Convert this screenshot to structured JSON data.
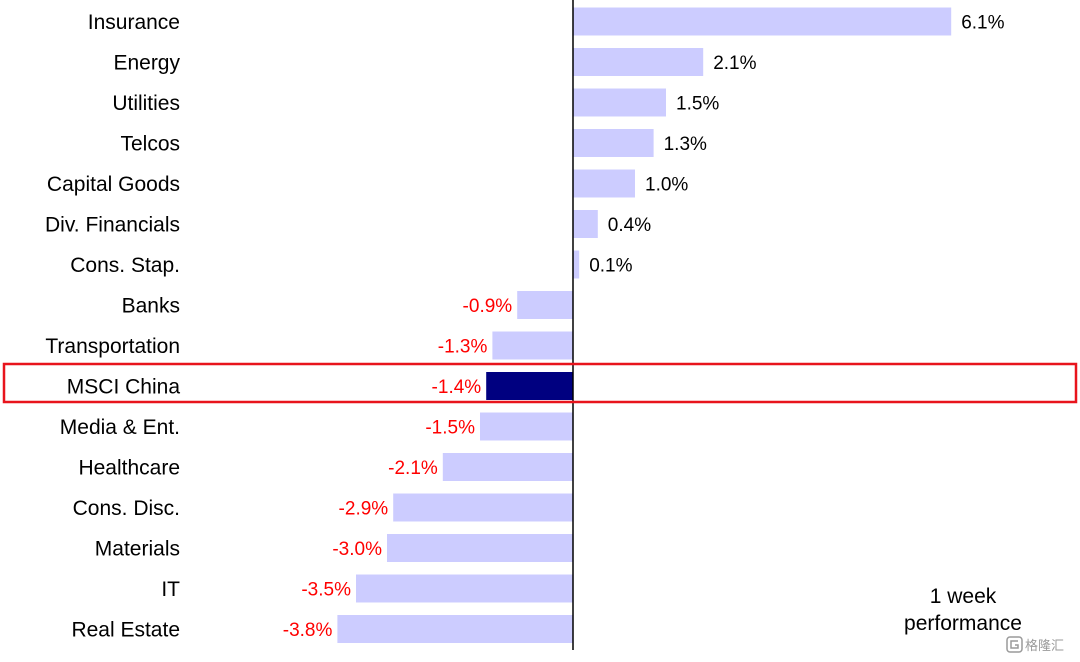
{
  "chart_data": {
    "type": "bar",
    "orientation": "horizontal",
    "categories": [
      "Insurance",
      "Energy",
      "Utilities",
      "Telcos",
      "Capital Goods",
      "Div. Financials",
      "Cons. Stap.",
      "Banks",
      "Transportation",
      "MSCI China",
      "Media & Ent.",
      "Healthcare",
      "Cons. Disc.",
      "Materials",
      "IT",
      "Real Estate"
    ],
    "values": [
      6.1,
      2.1,
      1.5,
      1.3,
      1.0,
      0.4,
      0.1,
      -0.9,
      -1.3,
      -1.4,
      -1.5,
      -2.1,
      -2.9,
      -3.0,
      -3.5,
      -3.8
    ],
    "value_labels": [
      "6.1%",
      "2.1%",
      "1.5%",
      "1.3%",
      "1.0%",
      "0.4%",
      "0.1%",
      "-0.9%",
      "-1.3%",
      "-1.4%",
      "-1.5%",
      "-2.1%",
      "-2.9%",
      "-3.0%",
      "-3.5%",
      "-3.8%"
    ],
    "highlight_category": "MSCI China",
    "annotation": [
      "1 week",
      "performance"
    ],
    "unit": "%",
    "colors": {
      "bar": "#ccccff",
      "highlight_bar": "#000080",
      "positive_label": "#000000",
      "negative_label": "#ff0000",
      "highlight_box": "#e8141c",
      "axis": "#000000"
    },
    "grid": false,
    "legend": "none"
  },
  "watermark": {
    "icon": "gelonghui-logo-icon",
    "text": "格隆汇"
  }
}
